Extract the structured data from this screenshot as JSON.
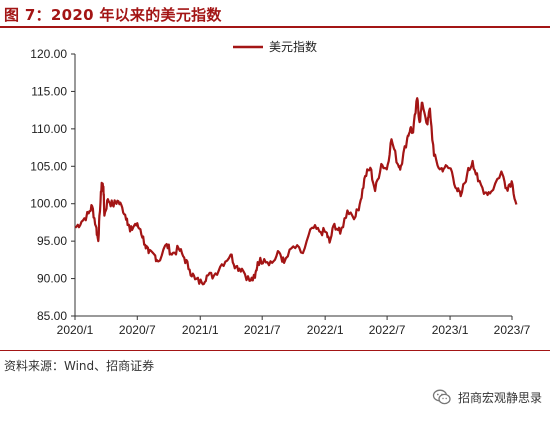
{
  "figure": {
    "title": "图 7：2020 年以来的美元指数",
    "source": "资料来源：Wind、招商证券",
    "watermark": "招商宏观静思录"
  },
  "colors": {
    "accent": "#a31515",
    "line": "#a31515"
  },
  "chart_data": {
    "type": "line",
    "legend_position": "top-center",
    "grid": false,
    "xlabel": "",
    "ylabel": "",
    "ylim": [
      85,
      120
    ],
    "yticks": [
      "85.00",
      "90.00",
      "95.00",
      "100.00",
      "105.00",
      "110.00",
      "115.00",
      "120.00"
    ],
    "xticks": [
      "2020/1",
      "2020/7",
      "2021/1",
      "2021/7",
      "2022/1",
      "2022/7",
      "2023/1",
      "2023/7"
    ],
    "series": [
      {
        "name": "美元指数",
        "points": [
          [
            "2020-01-02",
            96.8
          ],
          [
            "2020-01-20",
            97.6
          ],
          [
            "2020-02-10",
            98.7
          ],
          [
            "2020-02-20",
            99.7
          ],
          [
            "2020-03-02",
            97.0
          ],
          [
            "2020-03-09",
            95.0
          ],
          [
            "2020-03-13",
            98.6
          ],
          [
            "2020-03-19",
            102.8
          ],
          [
            "2020-03-24",
            102.3
          ],
          [
            "2020-03-27",
            98.4
          ],
          [
            "2020-04-06",
            100.6
          ],
          [
            "2020-04-20",
            99.8
          ],
          [
            "2020-05-04",
            100.4
          ],
          [
            "2020-05-18",
            99.5
          ],
          [
            "2020-06-01",
            98.0
          ],
          [
            "2020-06-10",
            96.3
          ],
          [
            "2020-06-25",
            97.3
          ],
          [
            "2020-07-10",
            96.6
          ],
          [
            "2020-07-24",
            94.5
          ],
          [
            "2020-08-03",
            93.4
          ],
          [
            "2020-08-20",
            93.2
          ],
          [
            "2020-09-01",
            92.3
          ],
          [
            "2020-09-25",
            94.6
          ],
          [
            "2020-10-10",
            93.2
          ],
          [
            "2020-10-30",
            94.0
          ],
          [
            "2020-11-15",
            92.8
          ],
          [
            "2020-12-01",
            91.2
          ],
          [
            "2020-12-17",
            89.9
          ],
          [
            "2021-01-06",
            89.4
          ],
          [
            "2021-01-20",
            90.4
          ],
          [
            "2021-02-10",
            90.4
          ],
          [
            "2021-03-05",
            91.9
          ],
          [
            "2021-03-31",
            93.2
          ],
          [
            "2021-04-15",
            91.6
          ],
          [
            "2021-05-03",
            91.3
          ],
          [
            "2021-05-25",
            89.7
          ],
          [
            "2021-06-10",
            90.1
          ],
          [
            "2021-06-18",
            92.2
          ],
          [
            "2021-07-07",
            92.6
          ],
          [
            "2021-07-30",
            92.1
          ],
          [
            "2021-08-20",
            93.5
          ],
          [
            "2021-09-03",
            92.1
          ],
          [
            "2021-09-30",
            94.3
          ],
          [
            "2021-10-28",
            93.4
          ],
          [
            "2021-11-24",
            96.8
          ],
          [
            "2021-12-15",
            96.3
          ],
          [
            "2022-01-04",
            96.2
          ],
          [
            "2022-01-14",
            94.8
          ],
          [
            "2022-01-28",
            97.3
          ],
          [
            "2022-02-14",
            96.0
          ],
          [
            "2022-03-07",
            99.1
          ],
          [
            "2022-03-31",
            98.3
          ],
          [
            "2022-04-15",
            100.5
          ],
          [
            "2022-04-28",
            103.7
          ],
          [
            "2022-05-13",
            104.8
          ],
          [
            "2022-05-27",
            101.7
          ],
          [
            "2022-06-14",
            105.3
          ],
          [
            "2022-06-30",
            104.6
          ],
          [
            "2022-07-14",
            108.6
          ],
          [
            "2022-08-01",
            105.3
          ],
          [
            "2022-08-10",
            105.0
          ],
          [
            "2022-08-29",
            108.8
          ],
          [
            "2022-09-07",
            110.1
          ],
          [
            "2022-09-15",
            109.5
          ],
          [
            "2022-09-27",
            114.1
          ],
          [
            "2022-10-04",
            110.9
          ],
          [
            "2022-10-12",
            113.5
          ],
          [
            "2022-10-27",
            110.6
          ],
          [
            "2022-11-03",
            112.7
          ],
          [
            "2022-11-15",
            106.4
          ],
          [
            "2022-12-02",
            104.6
          ],
          [
            "2022-12-16",
            104.8
          ],
          [
            "2023-01-03",
            104.7
          ],
          [
            "2023-01-20",
            102.0
          ],
          [
            "2023-02-01",
            101.0
          ],
          [
            "2023-02-20",
            104.0
          ],
          [
            "2023-03-08",
            105.7
          ],
          [
            "2023-03-24",
            103.0
          ],
          [
            "2023-04-14",
            101.5
          ],
          [
            "2023-05-01",
            101.6
          ],
          [
            "2023-05-31",
            104.3
          ],
          [
            "2023-06-15",
            102.1
          ],
          [
            "2023-06-30",
            103.0
          ],
          [
            "2023-07-14",
            99.9
          ]
        ]
      }
    ]
  }
}
